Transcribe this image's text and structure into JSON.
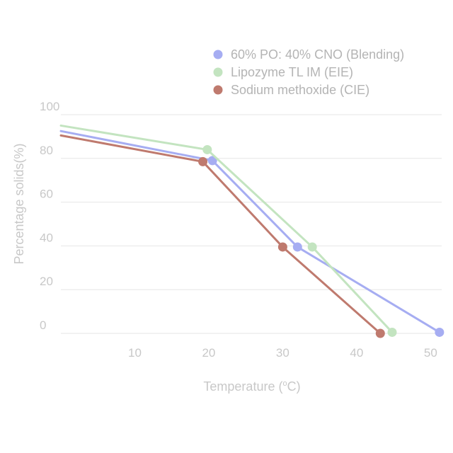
{
  "chart_data": {
    "type": "line",
    "xlabel_main": "Temperature (",
    "xlabel_sup": "o",
    "xlabel_tail": "C)",
    "ylabel": "Percentage solids(%)",
    "xlim": [
      0,
      51.5
    ],
    "ylim": [
      0,
      100
    ],
    "x_ticks": [
      "10",
      "20",
      "30",
      "40",
      "50"
    ],
    "x_tick_values": [
      10,
      20,
      30,
      40,
      50
    ],
    "y_ticks": [
      "0",
      "20",
      "40",
      "60",
      "80",
      "100"
    ],
    "y_tick_values": [
      0,
      20,
      40,
      60,
      80,
      100
    ],
    "grid": "horizontal",
    "legend_position": "top-right",
    "series": [
      {
        "name": "60% PO: 40% CNO (Blending)",
        "color": "#a6adf2",
        "x": [
          0,
          20.5,
          32,
          51.2
        ],
        "y": [
          92.5,
          79,
          39.5,
          0.5
        ],
        "marker_start_index": 1
      },
      {
        "name": "Lipozyme TL IM (EIE)",
        "color": "#c3e4c0",
        "x": [
          0,
          19.8,
          34,
          44.8
        ],
        "y": [
          95,
          84,
          39.5,
          0.5
        ],
        "marker_start_index": 1
      },
      {
        "name": "Sodium methoxide (CIE)",
        "color": "#bf7a6e",
        "x": [
          0,
          19.2,
          30,
          43.2
        ],
        "y": [
          90.5,
          78.5,
          39.5,
          0
        ],
        "marker_start_index": 1
      }
    ]
  }
}
